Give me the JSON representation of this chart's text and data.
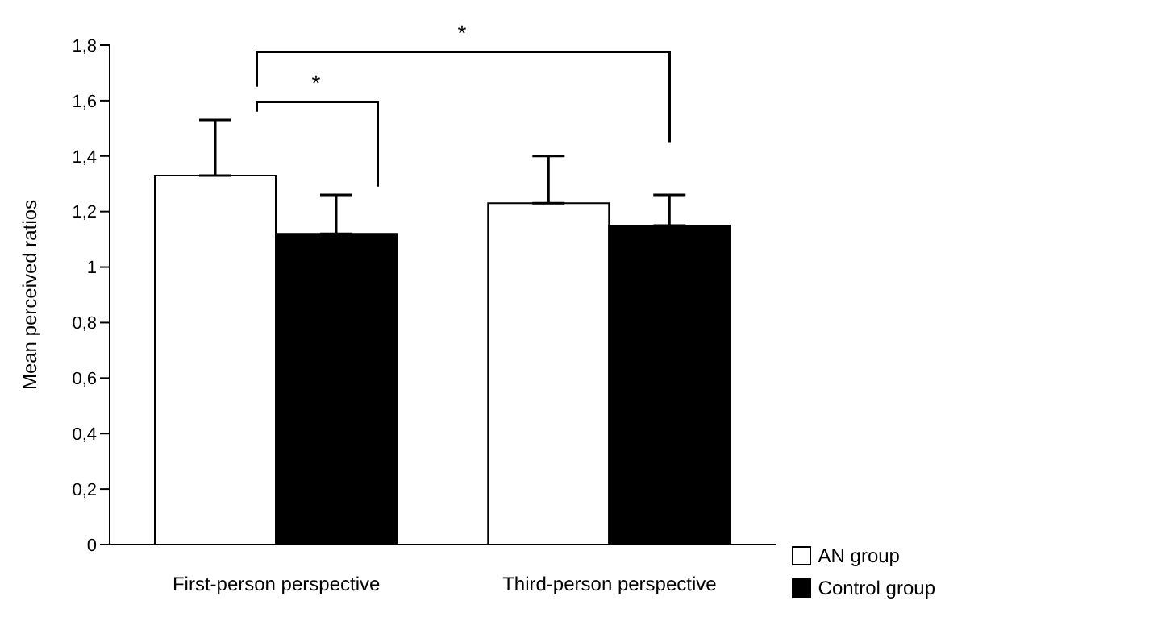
{
  "chart_data": {
    "type": "bar",
    "ylabel": "Mean perceived ratios",
    "categories": [
      "First-person perspective",
      "Third-person perspective"
    ],
    "series": [
      {
        "name": "AN group",
        "color": "#ffffff",
        "values": [
          1.33,
          1.23
        ],
        "errors": [
          [
            1.33,
            1.53
          ],
          [
            1.23,
            1.4
          ]
        ]
      },
      {
        "name": "Control group",
        "color": "#000000",
        "values": [
          1.12,
          1.15
        ],
        "errors": [
          [
            1.12,
            1.26
          ],
          [
            1.15,
            1.26
          ]
        ]
      }
    ],
    "ylim": [
      0,
      1.8
    ],
    "yticks": [
      0,
      {
        "value": 0.2,
        "label": "0,2"
      },
      {
        "value": 0.4,
        "label": "0,4"
      },
      {
        "value": 0.6,
        "label": "0,6"
      },
      {
        "value": 0.8,
        "label": "0,8"
      },
      1,
      {
        "value": 1.2,
        "label": "1,2"
      },
      {
        "value": 1.4,
        "label": "1,4"
      },
      {
        "value": 1.6,
        "label": "1,6"
      },
      {
        "value": 1.8,
        "label": "1,8"
      }
    ],
    "grid": false,
    "legend": "bottom right",
    "annotations": [
      "*",
      "*"
    ]
  }
}
